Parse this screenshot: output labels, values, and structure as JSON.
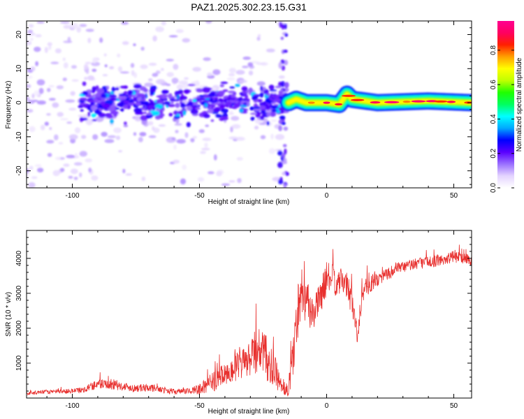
{
  "chart_data": [
    {
      "type": "heatmap",
      "title": "PAZ1.2025.302.23.15.G31",
      "xlabel": "Height of straight line (km)",
      "ylabel": "Frequency (Hz)",
      "xlim": [
        -118,
        57
      ],
      "ylim": [
        -25,
        24
      ],
      "xticks": [
        -100,
        -50,
        0,
        50
      ],
      "xtick_labels": [
        "-100",
        "-50",
        "0",
        "50"
      ],
      "yticks": [
        -20,
        -10,
        0,
        10,
        20
      ],
      "ytick_labels": [
        "-20",
        "-10",
        "0",
        "10",
        "20"
      ],
      "colorbar": {
        "label": "Normalized spectral amplitude",
        "range": [
          0,
          0.97
        ],
        "ticks": [
          0.0,
          0.2,
          0.4,
          0.6,
          0.8
        ],
        "tick_labels": [
          "0.0",
          "0.2",
          "0.4",
          "0.6",
          "0.8"
        ],
        "colors": [
          "#ffffff",
          "#e4d4ff",
          "#9a70ff",
          "#5a00ff",
          "#0000ff",
          "#00a8ff",
          "#00ffff",
          "#00ff60",
          "#20ff00",
          "#c0ff00",
          "#ffff00",
          "#ffa000",
          "#ff2000",
          "#ff0060",
          "#ff0090"
        ]
      },
      "description_of_structure": {
        "noisy_region_x": [
          -118,
          -17
        ],
        "noise_band_hz": [
          -8,
          8
        ],
        "coherent_trace": [
          [
            -15,
            0
          ],
          [
            -12,
            1
          ],
          [
            -8,
            0
          ],
          [
            0,
            0
          ],
          [
            5,
            -0.5
          ],
          [
            8,
            2.5
          ],
          [
            10,
            1
          ],
          [
            20,
            0
          ],
          [
            40,
            0.5
          ],
          [
            57,
            0
          ]
        ]
      }
    },
    {
      "type": "line",
      "xlabel": "Height of straight line (km)",
      "ylabel": "SNR (10 * v/v)",
      "xlim": [
        -118,
        57
      ],
      "ylim": [
        0,
        4800
      ],
      "xticks": [
        -100,
        -50,
        0,
        50
      ],
      "xtick_labels": [
        "-100",
        "-50",
        "0",
        "50"
      ],
      "yticks": [
        1000,
        2000,
        3000,
        4000
      ],
      "ytick_labels": [
        "1000",
        "2000",
        "3000",
        "4000"
      ],
      "series": [
        {
          "name": "SNR",
          "color": "#e8302e",
          "x": [
            -118,
            -110,
            -100,
            -95,
            -90,
            -85,
            -80,
            -75,
            -70,
            -65,
            -60,
            -55,
            -50,
            -45,
            -40,
            -35,
            -30,
            -27,
            -25,
            -22,
            -20,
            -18,
            -15,
            -13,
            -11,
            -10,
            -8,
            -6,
            -4,
            -2,
            0,
            2,
            4,
            6,
            8,
            10,
            12,
            14,
            16,
            20,
            25,
            30,
            35,
            40,
            45,
            50,
            55,
            57
          ],
          "values": [
            130,
            180,
            200,
            250,
            420,
            380,
            330,
            280,
            300,
            250,
            180,
            200,
            250,
            450,
            700,
            900,
            1100,
            1400,
            1300,
            900,
            700,
            300,
            250,
            1400,
            2600,
            3200,
            2800,
            2400,
            2600,
            3000,
            3400,
            3500,
            3200,
            3400,
            3200,
            2800,
            1800,
            3000,
            3200,
            3400,
            3600,
            3750,
            3850,
            3900,
            3950,
            4050,
            4000,
            3900
          ],
          "noise_amplitude": [
            50,
            60,
            70,
            90,
            160,
            140,
            120,
            110,
            110,
            100,
            80,
            90,
            150,
            280,
            350,
            420,
            500,
            700,
            750,
            550,
            450,
            250,
            250,
            700,
            800,
            700,
            700,
            500,
            450,
            500,
            450,
            400,
            350,
            350,
            400,
            450,
            300,
            350,
            300,
            200,
            180,
            180,
            170,
            170,
            170,
            170,
            170,
            170
          ]
        }
      ]
    }
  ]
}
